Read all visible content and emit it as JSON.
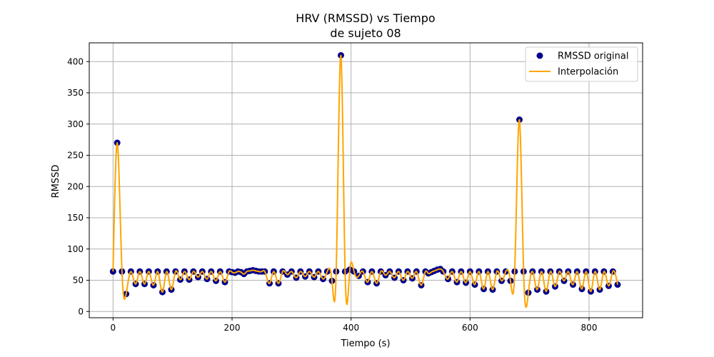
{
  "chart_data": {
    "type": "scatter",
    "title_line1": "HRV (RMSSD) vs Tiempo",
    "title_line2": "de sujeto 08",
    "xlabel": "Tiempo (s)",
    "ylabel": "RMSSD",
    "xlim": [
      -40,
      890
    ],
    "ylim": [
      -10,
      430
    ],
    "xticks": [
      0,
      200,
      400,
      600,
      800
    ],
    "yticks": [
      0,
      50,
      100,
      150,
      200,
      250,
      300,
      350,
      400
    ],
    "grid": true,
    "legend_position": "top-right",
    "series": [
      {
        "name": "RMSSD original",
        "kind": "scatter",
        "color": "#00008b",
        "points": [
          [
            0,
            64
          ],
          [
            7,
            270
          ],
          [
            15,
            64
          ],
          [
            22,
            28
          ],
          [
            30,
            64
          ],
          [
            38,
            44
          ],
          [
            45,
            64
          ],
          [
            53,
            44
          ],
          [
            60,
            64
          ],
          [
            68,
            42
          ],
          [
            75,
            64
          ],
          [
            83,
            31
          ],
          [
            90,
            64
          ],
          [
            98,
            35
          ],
          [
            105,
            64
          ],
          [
            113,
            51
          ],
          [
            120,
            64
          ],
          [
            128,
            51
          ],
          [
            135,
            64
          ],
          [
            143,
            55
          ],
          [
            150,
            64
          ],
          [
            158,
            52
          ],
          [
            165,
            64
          ],
          [
            173,
            49
          ],
          [
            180,
            64
          ],
          [
            188,
            47
          ],
          [
            195,
            64
          ],
          [
            200,
            63
          ],
          [
            205,
            62
          ],
          [
            210,
            64
          ],
          [
            215,
            63
          ],
          [
            220,
            60
          ],
          [
            225,
            64
          ],
          [
            230,
            65
          ],
          [
            235,
            66
          ],
          [
            240,
            65
          ],
          [
            245,
            64
          ],
          [
            250,
            64
          ],
          [
            255,
            64
          ],
          [
            263,
            45
          ],
          [
            270,
            64
          ],
          [
            278,
            45
          ],
          [
            285,
            64
          ],
          [
            293,
            59
          ],
          [
            300,
            64
          ],
          [
            308,
            54
          ],
          [
            315,
            64
          ],
          [
            323,
            56
          ],
          [
            330,
            64
          ],
          [
            338,
            55
          ],
          [
            345,
            64
          ],
          [
            353,
            52
          ],
          [
            360,
            64
          ],
          [
            368,
            49
          ],
          [
            375,
            64
          ],
          [
            383,
            410
          ],
          [
            390,
            64
          ],
          [
            398,
            67
          ],
          [
            405,
            64
          ],
          [
            413,
            57
          ],
          [
            420,
            64
          ],
          [
            428,
            47
          ],
          [
            435,
            64
          ],
          [
            443,
            45
          ],
          [
            450,
            64
          ],
          [
            458,
            58
          ],
          [
            465,
            64
          ],
          [
            473,
            54
          ],
          [
            480,
            64
          ],
          [
            488,
            50
          ],
          [
            495,
            64
          ],
          [
            503,
            53
          ],
          [
            510,
            64
          ],
          [
            518,
            42
          ],
          [
            525,
            64
          ],
          [
            530,
            61
          ],
          [
            535,
            63
          ],
          [
            540,
            65
          ],
          [
            545,
            67
          ],
          [
            550,
            68
          ],
          [
            555,
            64
          ],
          [
            563,
            52
          ],
          [
            570,
            64
          ],
          [
            578,
            47
          ],
          [
            585,
            64
          ],
          [
            593,
            46
          ],
          [
            600,
            64
          ],
          [
            608,
            43
          ],
          [
            615,
            64
          ],
          [
            623,
            36
          ],
          [
            630,
            64
          ],
          [
            638,
            35
          ],
          [
            645,
            64
          ],
          [
            653,
            49
          ],
          [
            660,
            64
          ],
          [
            668,
            49
          ],
          [
            675,
            64
          ],
          [
            683,
            307
          ],
          [
            690,
            64
          ],
          [
            698,
            30
          ],
          [
            705,
            64
          ],
          [
            713,
            35
          ],
          [
            720,
            64
          ],
          [
            728,
            32
          ],
          [
            735,
            64
          ],
          [
            743,
            40
          ],
          [
            750,
            64
          ],
          [
            758,
            49
          ],
          [
            765,
            64
          ],
          [
            773,
            43
          ],
          [
            780,
            64
          ],
          [
            788,
            36
          ],
          [
            795,
            64
          ],
          [
            803,
            32
          ],
          [
            810,
            64
          ],
          [
            818,
            35
          ],
          [
            825,
            64
          ],
          [
            833,
            41
          ],
          [
            840,
            64
          ],
          [
            848,
            43
          ]
        ]
      },
      {
        "name": "Interpolación",
        "kind": "line",
        "color": "#ffa500"
      }
    ]
  }
}
